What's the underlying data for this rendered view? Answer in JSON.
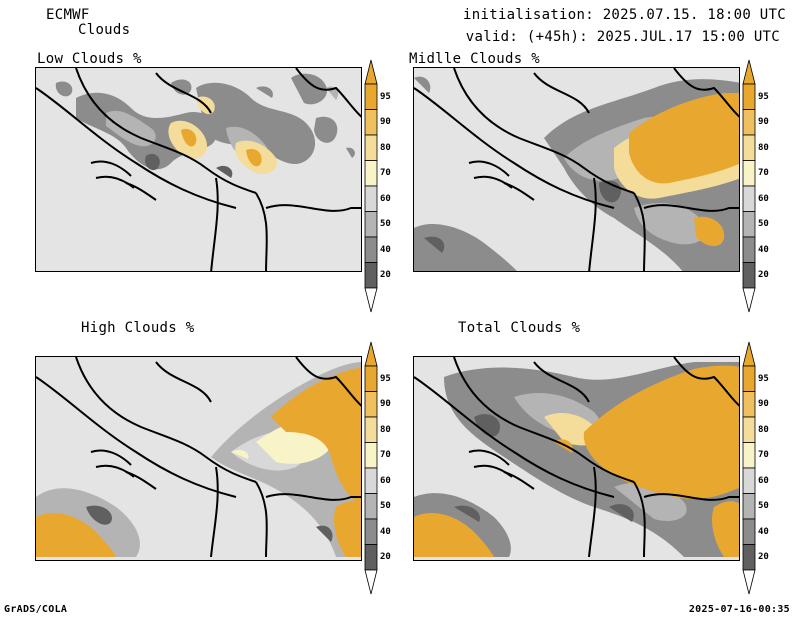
{
  "header": {
    "model": "ECMWF",
    "product": "Clouds",
    "init": "initialisation: 2025.07.15. 18:00 UTC",
    "valid": "valid: (+45h): 2025.JUL.17 15:00 UTC"
  },
  "panels": [
    {
      "title": "Low Clouds %"
    },
    {
      "title": "Midlle Clouds %"
    },
    {
      "title": "High Clouds %"
    },
    {
      "title": "Total Clouds %"
    }
  ],
  "colorbar": {
    "levels": [
      "95",
      "90",
      "80",
      "70",
      "60",
      "50",
      "40",
      "20"
    ],
    "colors": [
      "#e8a830",
      "#f0c060",
      "#f4dc9a",
      "#f8f4c8",
      "#d8d8d8",
      "#b4b4b4",
      "#8c8c8c",
      "#606060"
    ],
    "top_color": "#e8a830",
    "bottom_color": "#ffffff"
  },
  "footer": {
    "left": "GrADS/COLA",
    "right": "2025-07-16-00:35"
  }
}
